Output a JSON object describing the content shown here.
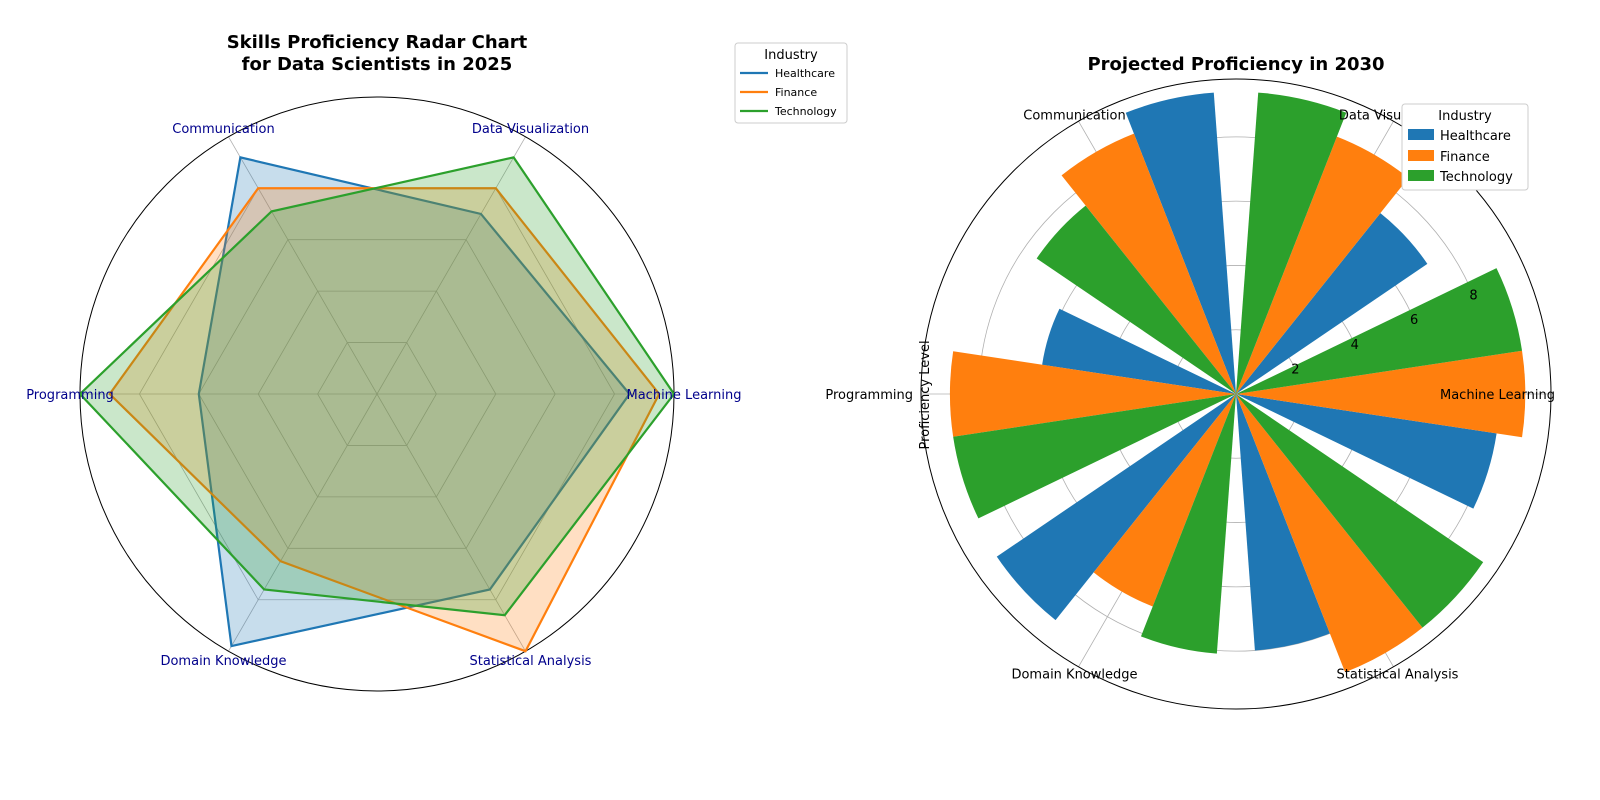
{
  "colors": {
    "Healthcare": "#1f77b4",
    "Finance": "#ff7f0e",
    "Technology": "#2ca02c"
  },
  "chart_data": [
    {
      "type": "radar",
      "title_lines": [
        "Skills Proficiency Radar Chart",
        "for Data Scientists in 2025"
      ],
      "categories": [
        "Machine Learning",
        "Data Visualization",
        "Communication",
        "Programming",
        "Domain Knowledge",
        "Statistical Analysis"
      ],
      "rlim": [
        0,
        10
      ],
      "grid": true,
      "legend": {
        "title": "Industry",
        "placement": "outside-top-right"
      },
      "series": [
        {
          "name": "Healthcare",
          "values": [
            8.5,
            7.0,
            9.2,
            6.0,
            9.8,
            7.6
          ]
        },
        {
          "name": "Finance",
          "values": [
            9.5,
            8.0,
            8.0,
            9.0,
            6.5,
            10.0
          ]
        },
        {
          "name": "Technology",
          "values": [
            10.0,
            9.2,
            7.1,
            10.0,
            7.6,
            8.6
          ]
        }
      ]
    },
    {
      "type": "polar-bar",
      "title": "Projected Proficiency in 2030",
      "ylabel": "Proficiency Level",
      "categories": [
        "Machine Learning",
        "Data Visualization",
        "Communication",
        "Programming",
        "Domain Knowledge",
        "Statistical Analysis"
      ],
      "rlim": [
        0,
        9.8
      ],
      "rticks": [
        "2",
        "4",
        "6",
        "8"
      ],
      "grid": true,
      "legend": {
        "title": "Industry",
        "placement": "top-right"
      },
      "series": [
        {
          "name": "Healthcare",
          "values": [
            8.2,
            7.2,
            9.4,
            6.1,
            9.0,
            8.0
          ]
        },
        {
          "name": "Finance",
          "values": [
            9.0,
            8.6,
            8.7,
            8.9,
            7.1,
            9.3
          ]
        },
        {
          "name": "Technology",
          "values": [
            9.0,
            9.4,
            7.5,
            8.9,
            8.1,
            9.3
          ]
        }
      ]
    }
  ]
}
